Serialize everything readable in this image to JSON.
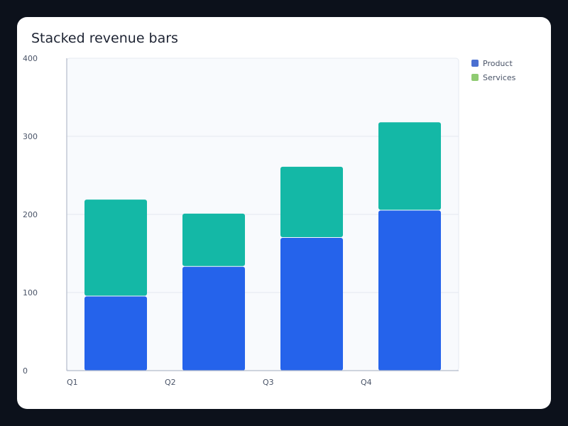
{
  "chart_data": {
    "type": "bar",
    "stacked": true,
    "title": "Stacked revenue bars",
    "xlabel": "",
    "ylabel": "",
    "categories": [
      "Q1",
      "Q2",
      "Q3",
      "Q4"
    ],
    "series": [
      {
        "name": "Product",
        "values": [
          95,
          133,
          170,
          205
        ],
        "color": "#2563eb",
        "legend_color": "#4a6fd1"
      },
      {
        "name": "Services",
        "values": [
          124,
          68,
          91,
          113
        ],
        "color": "#14b8a6",
        "legend_color": "#8fcb72"
      }
    ],
    "ylim": [
      0,
      400
    ],
    "yticks": [
      0,
      100,
      200,
      300,
      400
    ],
    "grid": true,
    "legend": "top-right"
  }
}
